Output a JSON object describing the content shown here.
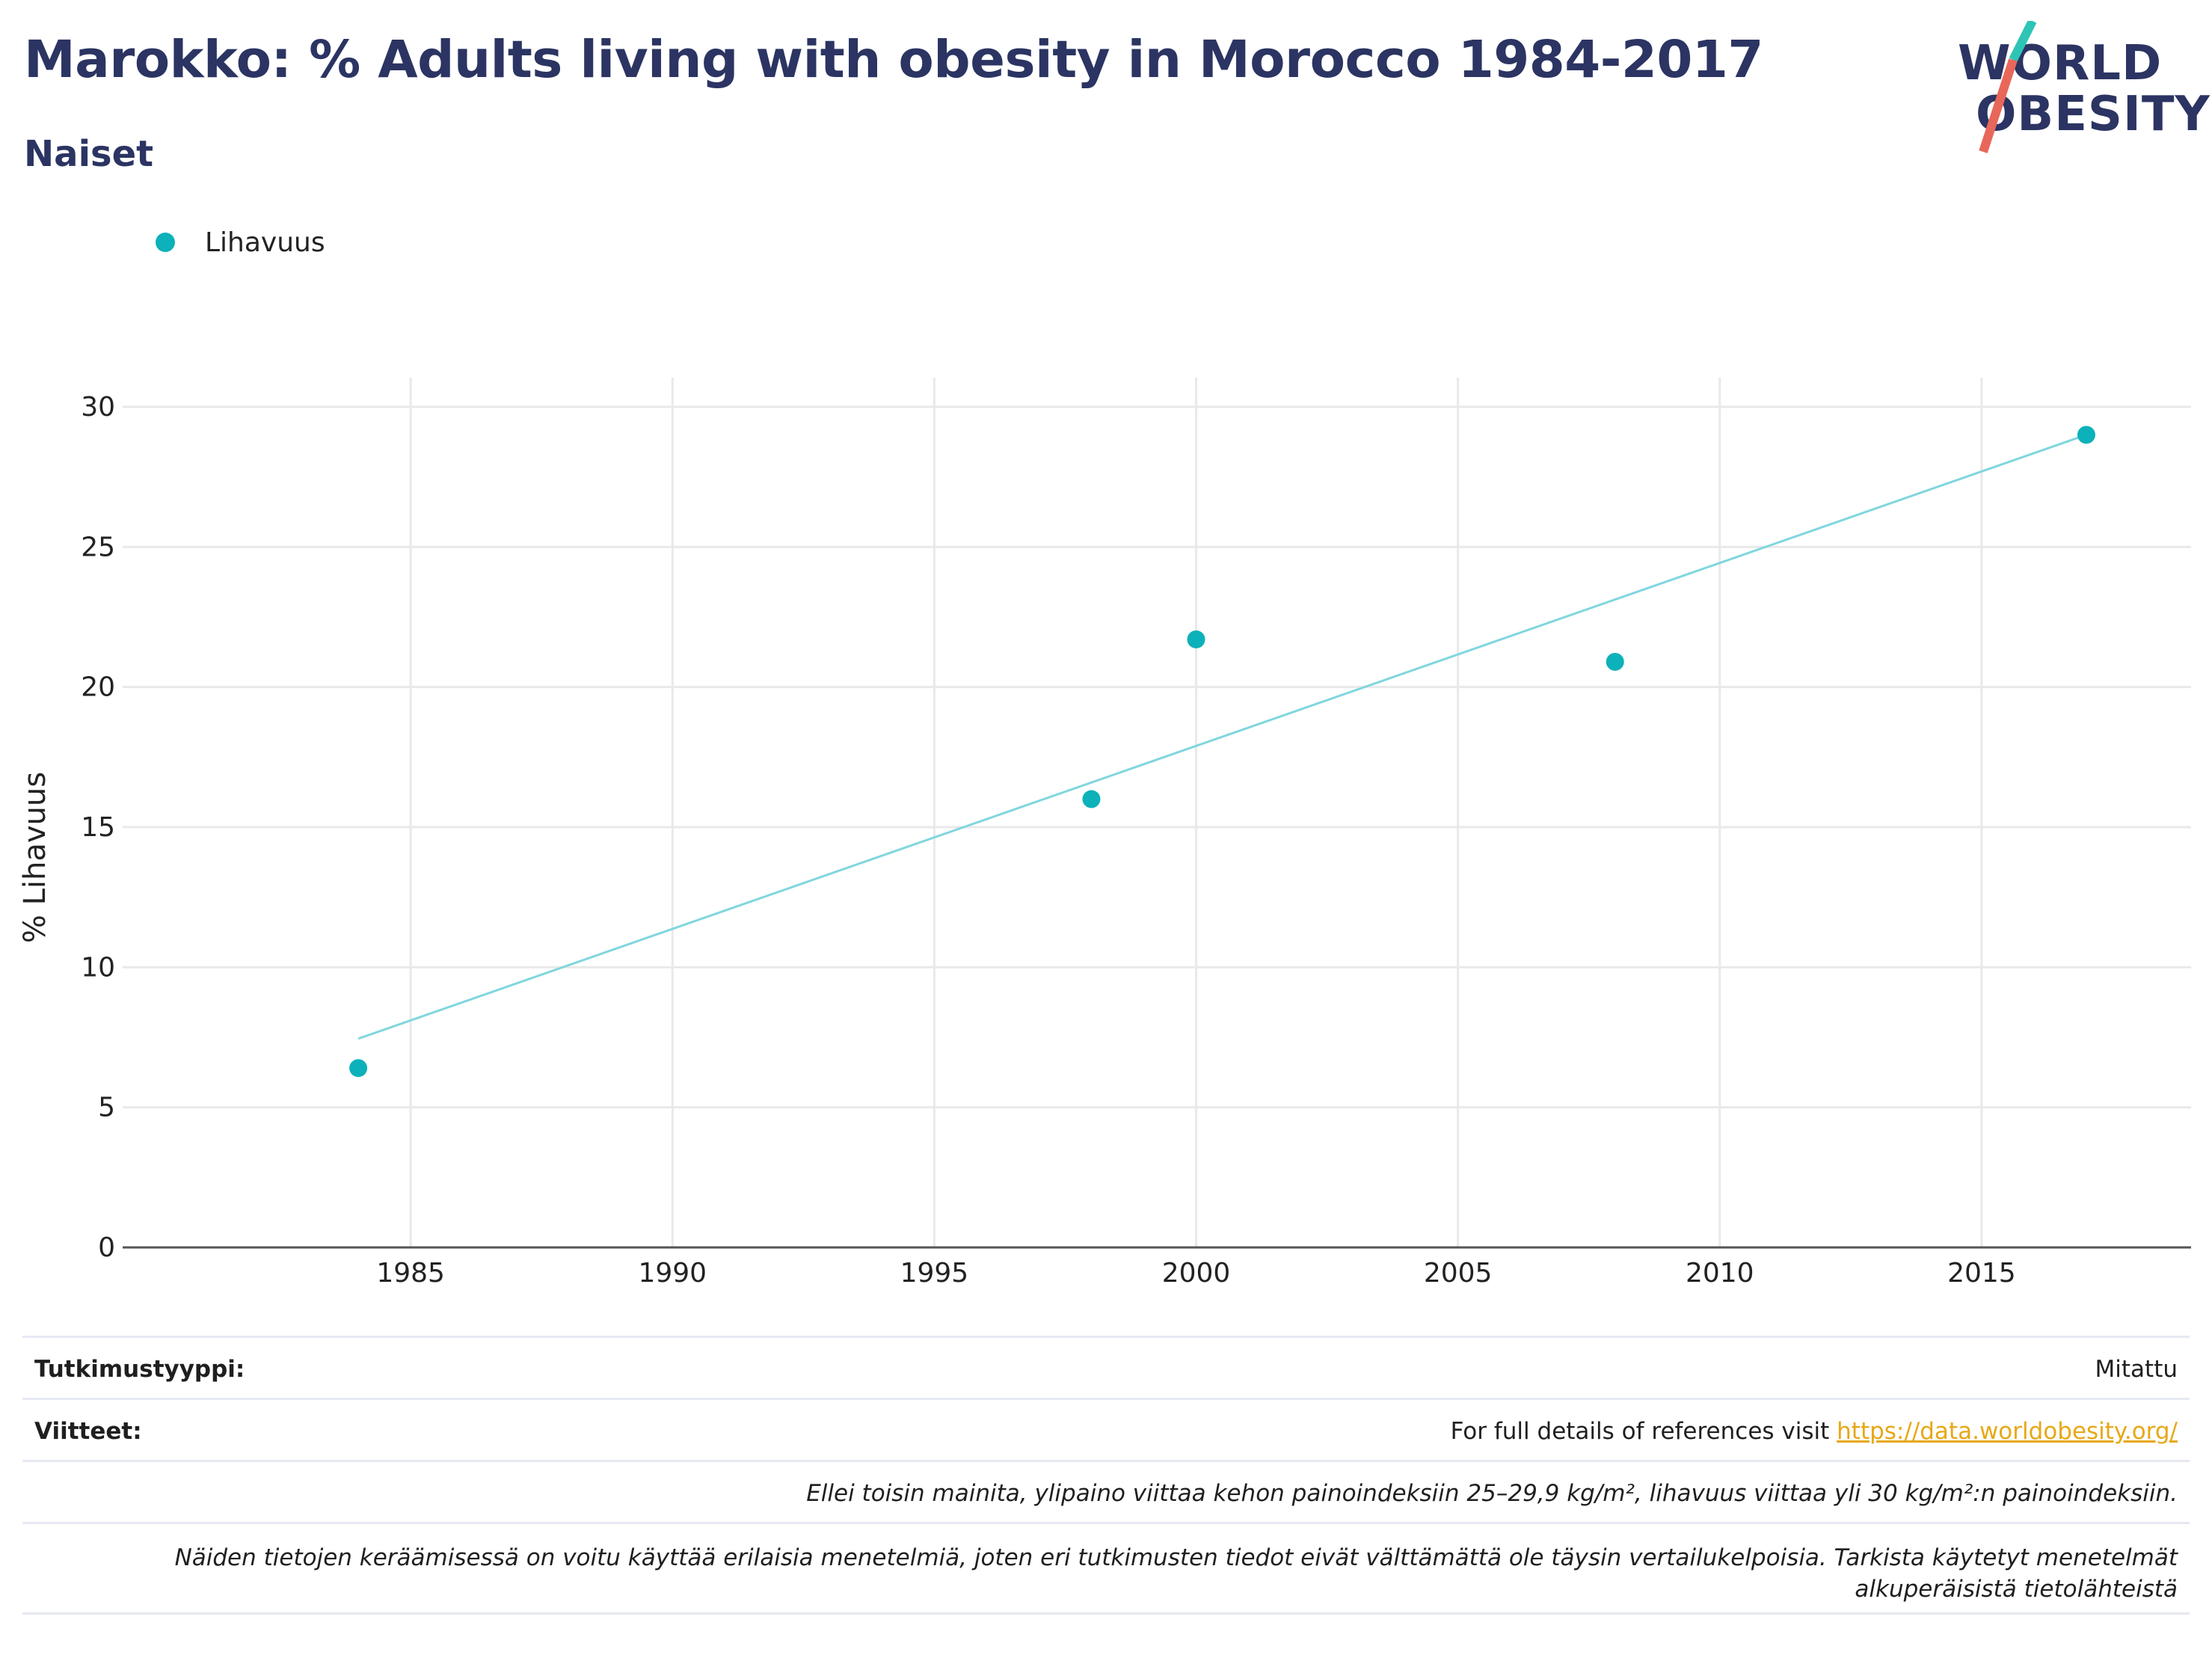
{
  "header": {
    "title": "Marokko: % Adults living with obesity in Morocco 1984-2017",
    "subtitle": "Naiset"
  },
  "logo": {
    "line1": "WORLD",
    "line2": "OBESITY",
    "colors": {
      "text": "#2b3462",
      "teal": "#2ec4b6",
      "coral": "#e8675a"
    }
  },
  "legend": {
    "label": "Lihavuus",
    "color": "#0db1b9"
  },
  "chart_data": {
    "type": "scatter",
    "title": "Marokko: % Adults living with obesity in Morocco 1984-2017",
    "subtitle": "Naiset",
    "xlabel": "",
    "ylabel": "% Lihavuus",
    "xlim": [
      1979.5,
      2019.0
    ],
    "ylim": [
      0,
      31
    ],
    "x_ticks": [
      1985,
      1990,
      1995,
      2000,
      2005,
      2010,
      2015
    ],
    "y_ticks": [
      0,
      5,
      10,
      15,
      20,
      25,
      30
    ],
    "grid": true,
    "legend_position": "top-left",
    "series": [
      {
        "name": "Lihavuus",
        "color": "#0db1b9",
        "points": [
          {
            "x": 1984,
            "y": 6.4
          },
          {
            "x": 1998,
            "y": 16.0
          },
          {
            "x": 2000,
            "y": 21.7
          },
          {
            "x": 2008,
            "y": 20.9
          },
          {
            "x": 2017,
            "y": 29.0
          }
        ]
      }
    ],
    "trendline": {
      "color": "#7fd6dd",
      "x0": 1984,
      "y0": 7.45,
      "x1": 2017,
      "y1": 29.0
    }
  },
  "footer": {
    "study_type_label": "Tutkimustyyppi:",
    "study_type_value": "Mitattu",
    "references_label": "Viitteet:",
    "references_text": "For full details of references visit ",
    "references_link": "https://data.worldobesity.org/",
    "note1": "Ellei toisin mainita, ylipaino viittaa kehon painoindeksiin 25–29,9 kg/m², lihavuus viittaa yli 30 kg/m²:n painoindeksiin.",
    "note2_line1": "Näiden tietojen keräämisessä on voitu käyttää erilaisia menetelmiä, joten eri tutkimusten tiedot eivät välttämättä ole täysin vertailukelpoisia. Tarkista käytetyt menetelmät",
    "note2_line2": "alkuperäisistä tietolähteistä"
  }
}
